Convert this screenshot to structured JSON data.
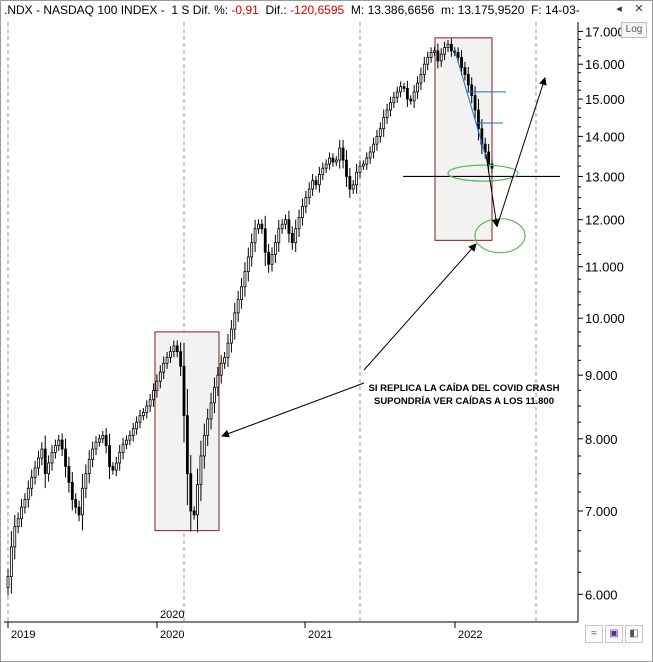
{
  "header": {
    "symbol": ".NDX - NASDAQ 100 INDEX -",
    "period": "1 S",
    "dif_pct_label": "Dif. %:",
    "dif_pct_value": "-0,91",
    "dif_label": "Dif.:",
    "dif_value": "-120,6595",
    "max_label": "M:",
    "max_value": "13.386,6656",
    "min_label": "m:",
    "min_value": "13.175,9520",
    "date_label": "F: 14-03-"
  },
  "controls": {
    "log_label": "Log",
    "close_glyph": "✕"
  },
  "chart_data": {
    "type": "candlestick",
    "yscale": "log",
    "ylim": [
      5700,
      17300
    ],
    "yticks": [
      "17.000",
      "16.000",
      "15.000",
      "14.000",
      "13.000",
      "12.000",
      "11.000",
      "10.000",
      "9.000",
      "8.000",
      "7.000",
      "6.000"
    ],
    "ytick_values": [
      17000,
      16000,
      15000,
      14000,
      13000,
      12000,
      11000,
      10000,
      9000,
      8000,
      7000,
      6000
    ],
    "xticks": [
      "2019",
      "2020",
      "2021",
      "2022"
    ],
    "xtick_extra": "2020",
    "grid": "vertical dashed at year starts",
    "series": [
      {
        "name": "",
        "values": [
          6200,
          6550,
          6800,
          6900,
          7050,
          7150,
          7300,
          7450,
          7580,
          7720,
          7850,
          7500,
          7650,
          7800,
          7900,
          7980,
          7850,
          7600,
          7380,
          7150,
          7050,
          6950,
          7300,
          7500,
          7700,
          7850,
          7950,
          8000,
          8050,
          7900,
          7600,
          7550,
          7650,
          7800,
          7920,
          7980,
          8050,
          8150,
          8250,
          8350,
          8400,
          8500,
          8600,
          8750,
          8900,
          9050,
          9200,
          9300,
          9400,
          9500,
          9400,
          9150,
          8350,
          7500,
          7000,
          6950,
          7350,
          7750,
          8050,
          8300,
          8550,
          8800,
          9000,
          9200,
          9300,
          9550,
          9800,
          10100,
          10350,
          10600,
          10900,
          11200,
          11500,
          11800,
          11900,
          11800,
          11300,
          11050,
          11250,
          11500,
          11800,
          11900,
          12000,
          11700,
          11500,
          11800,
          12050,
          12300,
          12500,
          12700,
          12900,
          12800,
          13050,
          13200,
          13300,
          13450,
          13350,
          13400,
          13700,
          13400,
          13000,
          12700,
          12800,
          13100,
          13250,
          13300,
          13450,
          13600,
          13800,
          14000,
          14200,
          14500,
          14700,
          14900,
          15050,
          15200,
          15350,
          15300,
          15000,
          14950,
          15200,
          15450,
          15700,
          16000,
          16200,
          16350,
          16400,
          16100,
          16300,
          16500,
          16600,
          16400,
          16350,
          16200,
          15900,
          15700,
          15400,
          15100,
          14700,
          14200,
          13800,
          13600,
          13300,
          13200
        ]
      }
    ],
    "annotations": [
      {
        "type": "hline",
        "value": 13000,
        "label": ""
      },
      {
        "type": "text",
        "lines": [
          "SI REPLICA LA CAÍDA DEL COVID CRASH",
          "SUPONDRÍA VER CAÍDAS A LOS 11.800"
        ]
      }
    ]
  }
}
